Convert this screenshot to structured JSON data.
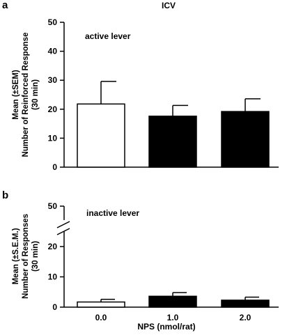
{
  "chart_data": [
    {
      "type": "bar",
      "panel": "a",
      "title": "ICV",
      "annotation": "active lever",
      "categories": [
        "0.0",
        "1.0",
        "2.0"
      ],
      "values": [
        21.8,
        17.6,
        19.2
      ],
      "errors": [
        7.8,
        3.7,
        4.4
      ],
      "bar_colors": [
        "#ffffff",
        "#000000",
        "#000000"
      ],
      "ylabel": [
        "Mean (±SEM)",
        "Number of Reinforced Response",
        "(30 min)"
      ],
      "xlabel": "",
      "ylim": [
        0,
        50
      ],
      "yticks": [
        "0",
        "10",
        "20",
        "30",
        "40",
        "50"
      ],
      "grid": false
    },
    {
      "type": "bar",
      "panel": "b",
      "title": "",
      "annotation": "inactive lever",
      "categories": [
        "0.0",
        "1.0",
        "2.0"
      ],
      "values": [
        1.7,
        3.6,
        2.3
      ],
      "errors": [
        0.9,
        1.2,
        1.0
      ],
      "bar_colors": [
        "#ffffff",
        "#000000",
        "#000000"
      ],
      "ylabel": [
        "Mean (±S.E.M.)",
        "Number of Responses",
        "(30 min)"
      ],
      "xlabel": "NPS (nmol/rat)",
      "ylim": [
        0,
        50
      ],
      "yticks": [
        "0",
        "10",
        "20",
        "50"
      ],
      "axis_break": [
        25,
        45
      ],
      "grid": false
    }
  ]
}
